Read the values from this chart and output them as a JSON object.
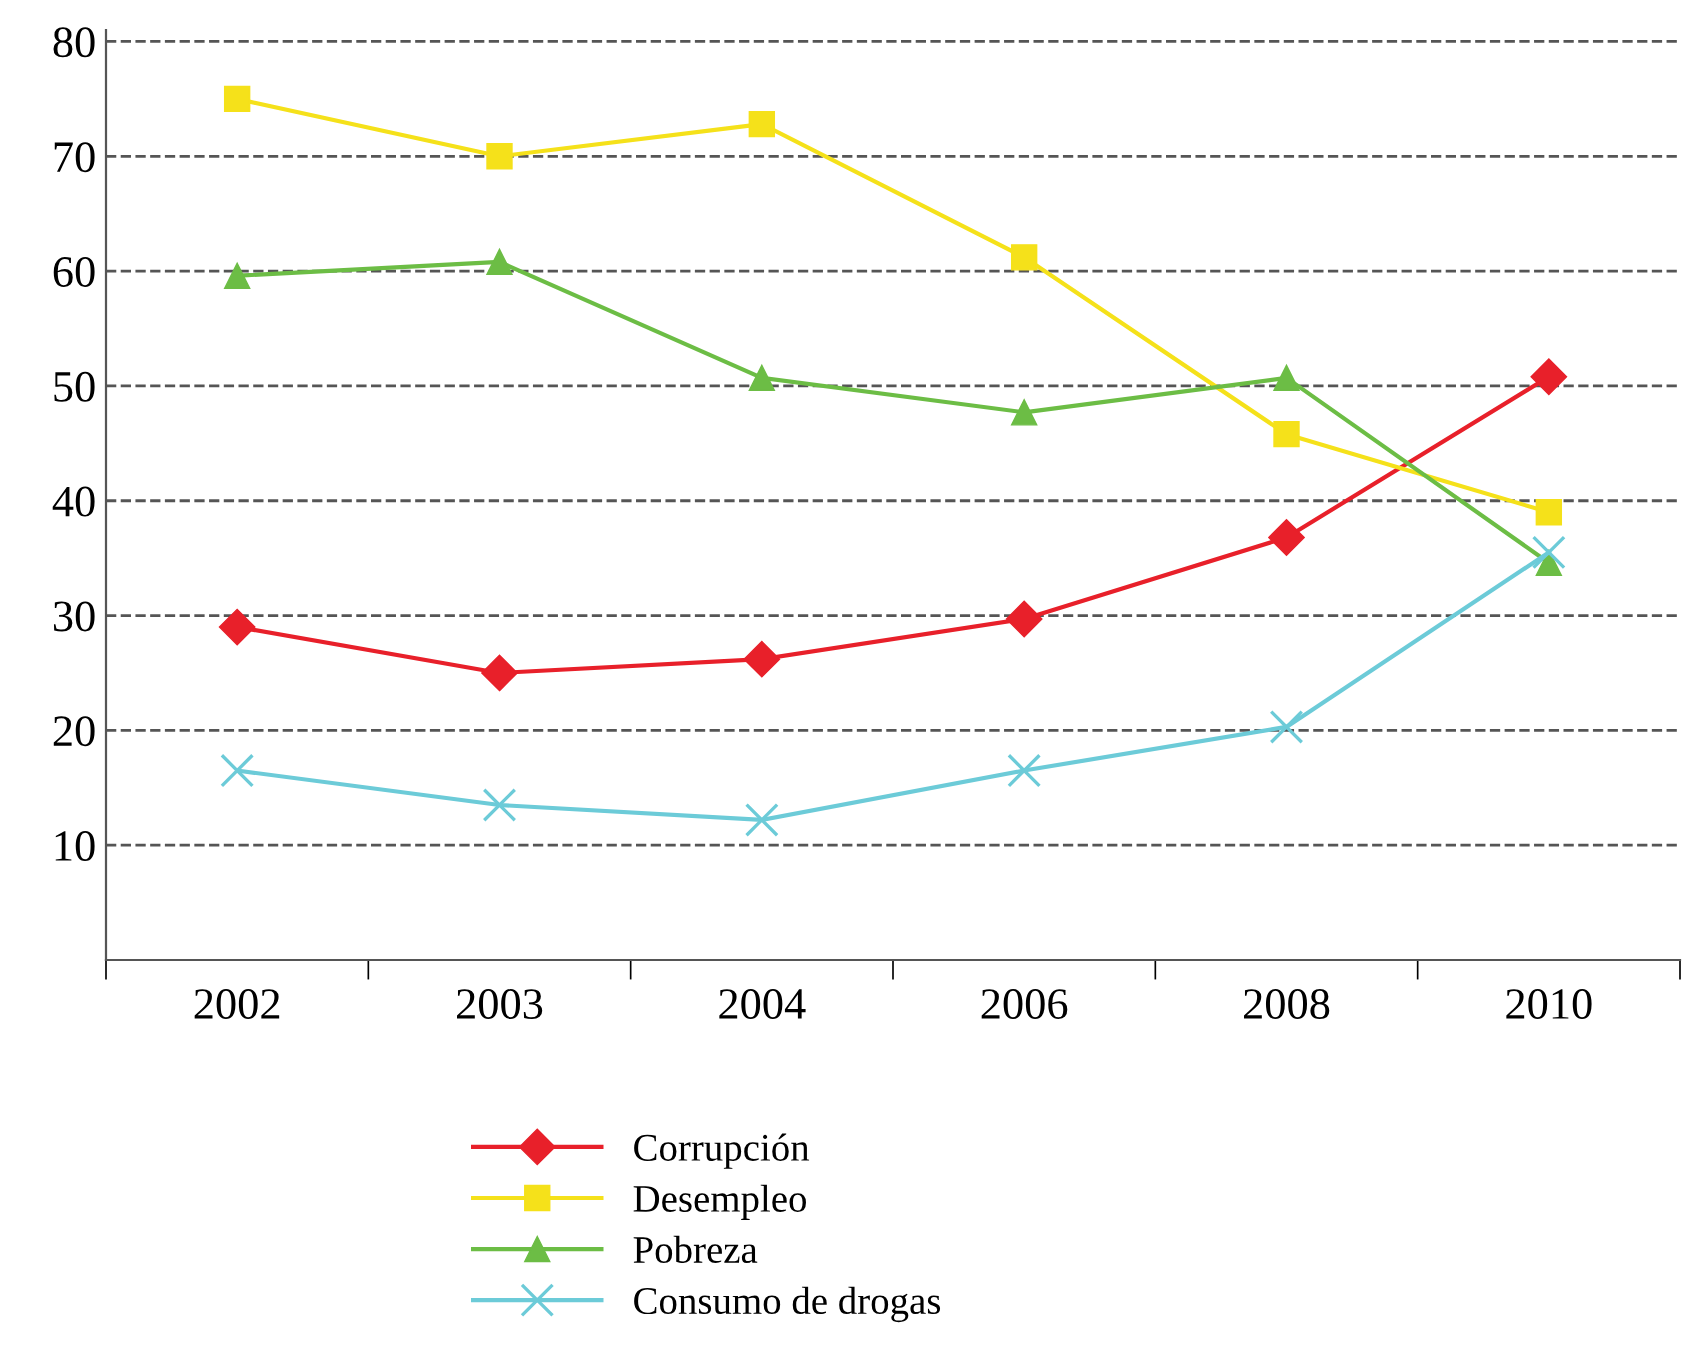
{
  "chart_data": {
    "type": "line",
    "categories": [
      "2002",
      "2003",
      "2004",
      "2006",
      "2008",
      "2010"
    ],
    "series": [
      {
        "name": "Corrupción",
        "color": "#e8202a",
        "marker": "diamond",
        "values": [
          29,
          25,
          26.2,
          29.7,
          36.8,
          50.8
        ]
      },
      {
        "name": "Desempleo",
        "color": "#f5e11a",
        "marker": "square",
        "values": [
          75,
          70,
          72.8,
          61.2,
          45.8,
          39
        ]
      },
      {
        "name": "Pobreza",
        "color": "#6cbd45",
        "marker": "triangle",
        "values": [
          59.6,
          60.8,
          50.7,
          47.7,
          50.7,
          34.6
        ]
      },
      {
        "name": "Consumo de drogas",
        "color": "#6ccbd8",
        "marker": "cross",
        "values": [
          16.5,
          13.5,
          12.2,
          16.5,
          20.3,
          35.5
        ]
      }
    ],
    "ylim": [
      0,
      81
    ],
    "yticks": [
      10,
      20,
      30,
      40,
      50,
      60,
      70,
      80
    ],
    "grid": "y",
    "legend": "bottom",
    "line_style": "solid"
  }
}
